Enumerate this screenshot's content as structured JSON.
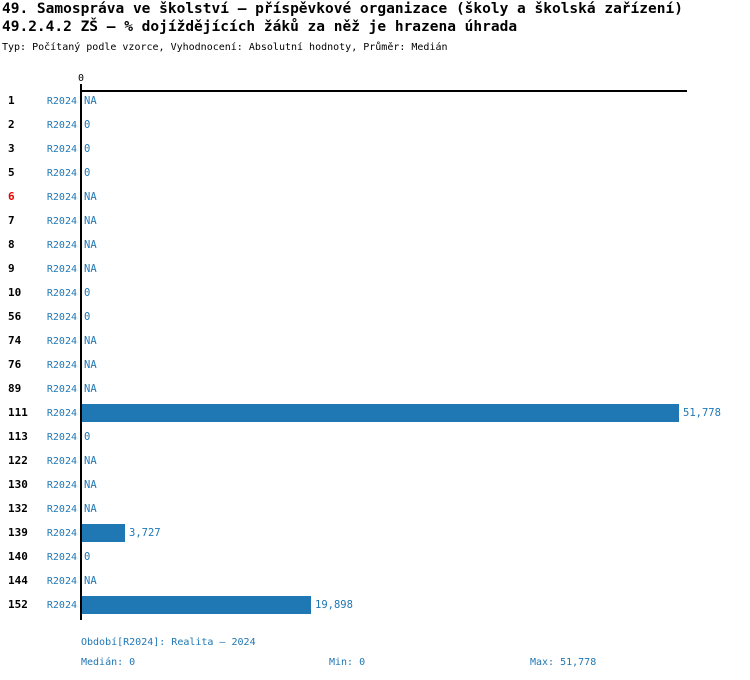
{
  "header": {
    "title_line1": "49. Samospráva ve školství – příspěvkové organizace (školy a školská zařízení)",
    "title_line2": "49.2.4.2 ZŠ – % dojíždějících žáků za něž je hrazena úhrada",
    "subtitle": "Typ: Počítaný podle vzorce, Vyhodnocení: Absolutní hodnoty, Průměr: Medián"
  },
  "colors": {
    "bar_blue": "#1f77b4",
    "text_blue": "#1f77b4",
    "highlight_red": "#ee0000",
    "axis_black": "#000000"
  },
  "chart_data": {
    "type": "bar",
    "orientation": "horizontal",
    "title": "49.2.4.2 ZŠ – % dojíždějících žáků za něž je hrazena úhrada",
    "series_label": "R2024",
    "x_tick_labels": [
      "0"
    ],
    "xlim": [
      0,
      51.778
    ],
    "grid": false,
    "rows": [
      {
        "id": "1",
        "value": null,
        "value_label": "NA",
        "highlight": false
      },
      {
        "id": "2",
        "value": 0,
        "value_label": "0",
        "highlight": false
      },
      {
        "id": "3",
        "value": 0,
        "value_label": "0",
        "highlight": false
      },
      {
        "id": "5",
        "value": 0,
        "value_label": "0",
        "highlight": false
      },
      {
        "id": "6",
        "value": null,
        "value_label": "NA",
        "highlight": true
      },
      {
        "id": "7",
        "value": null,
        "value_label": "NA",
        "highlight": false
      },
      {
        "id": "8",
        "value": null,
        "value_label": "NA",
        "highlight": false
      },
      {
        "id": "9",
        "value": null,
        "value_label": "NA",
        "highlight": false
      },
      {
        "id": "10",
        "value": 0,
        "value_label": "0",
        "highlight": false
      },
      {
        "id": "56",
        "value": 0,
        "value_label": "0",
        "highlight": false
      },
      {
        "id": "74",
        "value": null,
        "value_label": "NA",
        "highlight": false
      },
      {
        "id": "76",
        "value": null,
        "value_label": "NA",
        "highlight": false
      },
      {
        "id": "89",
        "value": null,
        "value_label": "NA",
        "highlight": false
      },
      {
        "id": "111",
        "value": 51.778,
        "value_label": "51,778",
        "highlight": false
      },
      {
        "id": "113",
        "value": 0,
        "value_label": "0",
        "highlight": false
      },
      {
        "id": "122",
        "value": null,
        "value_label": "NA",
        "highlight": false
      },
      {
        "id": "130",
        "value": null,
        "value_label": "NA",
        "highlight": false
      },
      {
        "id": "132",
        "value": null,
        "value_label": "NA",
        "highlight": false
      },
      {
        "id": "139",
        "value": 3.727,
        "value_label": "3,727",
        "highlight": false
      },
      {
        "id": "140",
        "value": 0,
        "value_label": "0",
        "highlight": false
      },
      {
        "id": "144",
        "value": null,
        "value_label": "NA",
        "highlight": false
      },
      {
        "id": "152",
        "value": 19.898,
        "value_label": "19,898",
        "highlight": false
      }
    ],
    "footer": {
      "period": "Období[R2024]: Realita – 2024",
      "median": "Medián: 0",
      "min": "Min: 0",
      "max": "Max: 51,778"
    }
  }
}
